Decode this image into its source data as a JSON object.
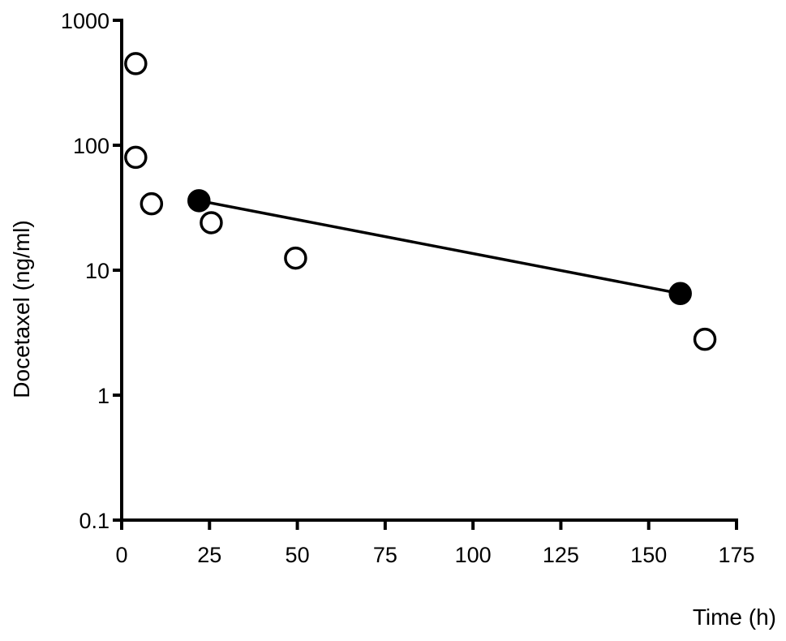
{
  "chart_data": {
    "type": "scatter",
    "title": "",
    "xlabel": "Time (h)",
    "ylabel": "Docetaxel (ng/ml)",
    "xlim": [
      0,
      175
    ],
    "ylim": [
      0.1,
      1000
    ],
    "yscale": "log",
    "grid": false,
    "x_ticks": [
      0,
      25,
      50,
      75,
      100,
      125,
      150,
      175
    ],
    "x_tick_labels": [
      "0",
      "25",
      "50",
      "75",
      "100",
      "125",
      "150",
      "175"
    ],
    "y_ticks": [
      1000,
      100,
      10,
      1,
      0.1
    ],
    "y_tick_labels": [
      "1000",
      "100",
      "10",
      "1",
      "0.1"
    ],
    "series": [
      {
        "marker": "open-circle",
        "color": "#ffffff",
        "x": [
          4,
          4,
          8.5,
          25.5,
          49.5,
          166
        ],
        "y": [
          450,
          80,
          34,
          24,
          12.5,
          2.8
        ]
      },
      {
        "marker": "filled-circle",
        "color": "#000000",
        "connected": true,
        "x": [
          22,
          159
        ],
        "y": [
          36,
          6.5
        ]
      }
    ]
  }
}
